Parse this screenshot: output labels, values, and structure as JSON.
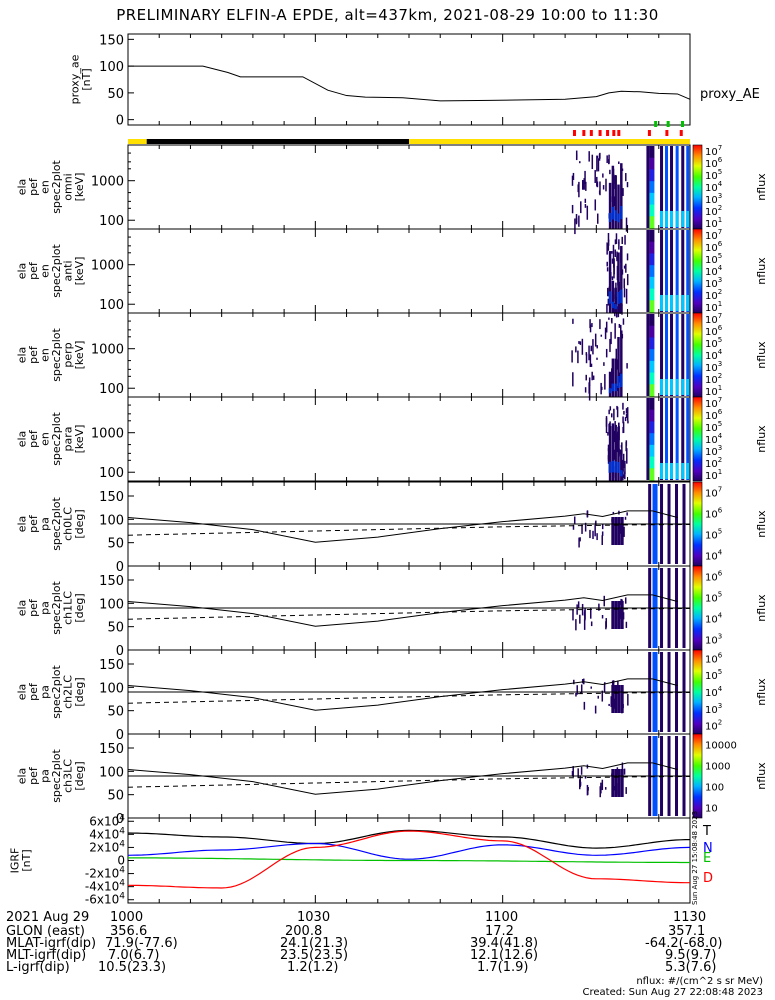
{
  "title": "PRELIMINARY ELFIN-A EPDE, alt=437km, 2021-08-29 10:00 to 11:30",
  "proxy_label": "proxy_AE",
  "proxy_ylabel": [
    "proxy_ae",
    "[nT]"
  ],
  "spec_ylabels": [
    [
      "ela",
      "pef",
      "en",
      "spec2plot",
      "omni",
      "[keV]"
    ],
    [
      "ela",
      "pef",
      "en",
      "spec2plot",
      "anti",
      "[keV]"
    ],
    [
      "ela",
      "pef",
      "en",
      "spec2plot",
      "perp",
      "[keV]"
    ],
    [
      "ela",
      "pef",
      "en",
      "spec2plot",
      "para",
      "[keV]"
    ]
  ],
  "pa_ylabels": [
    [
      "ela",
      "pef",
      "pa",
      "spec2plot",
      "ch0LC",
      "[deg]"
    ],
    [
      "ela",
      "pef",
      "pa",
      "spec2plot",
      "ch1LC",
      "[deg]"
    ],
    [
      "ela",
      "pef",
      "pa",
      "spec2plot",
      "ch2LC",
      "[deg]"
    ],
    [
      "ela",
      "pef",
      "pa",
      "spec2plot",
      "ch3LC",
      "[deg]"
    ]
  ],
  "igrf_ylabel": [
    "IGRF",
    "[nT]"
  ],
  "igrf_legend": [
    {
      "text": "T",
      "color": "#000000"
    },
    {
      "text": "N",
      "color": "#0000ff"
    },
    {
      "text": "E",
      "color": "#00c000"
    },
    {
      "text": "D",
      "color": "#ff0000"
    }
  ],
  "nflux": "nflux",
  "sidebar_text": "Sun Aug 27 15:08:48 2023",
  "footer": {
    "rows": [
      {
        "label": "2021 Aug 29",
        "values": [
          "1000",
          "1030",
          "1100",
          "1130"
        ]
      },
      {
        "label": "GLON (east)",
        "values": [
          "356.6",
          "200.8",
          "17.2",
          "357.1"
        ]
      },
      {
        "label": "MLAT-igrf(dip)",
        "values": [
          "71.9(-77.6)",
          "24.1(21.3)",
          "39.4(41.8)",
          "-64.2(-68.0)"
        ]
      },
      {
        "label": "MLT-igrf(dip)",
        "values": [
          "7.0(6.7)",
          "23.5(23.5)",
          "12.1(12.6)",
          "9.5(9.7)"
        ]
      },
      {
        "label": "L-igrf(dip)",
        "values": [
          "10.5(23.3)",
          "1.2(1.2)",
          "1.7(1.9)",
          "5.3(7.6)"
        ]
      }
    ],
    "units_note": "nflux: #/(cm^2 s sr MeV)",
    "created": "Created: Sun Aug 27 22:08:48 2023"
  },
  "colors": {
    "yellow_bar": "#ffe000",
    "black_bar": "#000000",
    "red_marker": "#ff0000",
    "green_marker": "#00c000"
  },
  "chart_data": [
    {
      "type": "line",
      "panel": "proxy_ae",
      "xlim": [
        0,
        90
      ],
      "ylim": [
        -10,
        160
      ],
      "yticks": [
        0,
        50,
        100,
        150
      ],
      "x": [
        0,
        12,
        16,
        18,
        28,
        32,
        35,
        38,
        44,
        50,
        58,
        70,
        75,
        77,
        79,
        82,
        85,
        88,
        90
      ],
      "y": [
        100,
        100,
        88,
        80,
        80,
        55,
        45,
        42,
        41,
        35,
        36,
        38,
        43,
        50,
        53,
        52,
        49,
        48,
        38
      ],
      "yaxis_note": "x in minutes after 10:00"
    },
    {
      "type": "heatmap",
      "panel": "energy spectrograms (omni, anti, perp, para)",
      "ylim": [
        60,
        8000
      ],
      "ylog": true,
      "yticks": [
        100,
        1000
      ],
      "active_windows_min": [
        [
          71,
          85
        ],
        [
          87,
          90
        ]
      ],
      "colorbar": {
        "label": "nflux",
        "ticks": [
          "10^1",
          "10^2",
          "10^3",
          "10^4",
          "10^5",
          "10^6",
          "10^7"
        ]
      }
    },
    {
      "type": "line",
      "panel": "pitch-angle loss cone (ch0LC..ch3LC)",
      "xlim": [
        0,
        90
      ],
      "ylim": [
        0,
        180
      ],
      "yticks": [
        0,
        50,
        100,
        150
      ],
      "series": [
        {
          "name": "",
          "style": "solid",
          "x": [
            0,
            10,
            20,
            30,
            40,
            50,
            60,
            70,
            73,
            76,
            80,
            84,
            88
          ],
          "y": [
            104,
            93,
            78,
            51,
            62,
            80,
            95,
            107,
            112,
            106,
            118,
            118,
            104
          ]
        },
        {
          "name": "",
          "style": "dashed",
          "x": [
            0,
            20,
            40,
            60,
            80,
            90
          ],
          "y": [
            66,
            72,
            78,
            84,
            88,
            89
          ]
        },
        {
          "name": "",
          "style": "solid",
          "x": [
            0,
            90
          ],
          "y": [
            90,
            90
          ]
        }
      ],
      "colorbars": [
        {
          "ticks": [
            "10^4",
            "10^5",
            "10^6",
            "10^7"
          ]
        },
        {
          "ticks": [
            "10^3",
            "10^4",
            "10^5",
            "10^6"
          ]
        },
        {
          "ticks": [
            "10^2",
            "10^3",
            "10^4",
            "10^5",
            "10^6"
          ]
        },
        {
          "ticks": [
            "10",
            "100",
            "1000",
            "10000"
          ]
        }
      ]
    },
    {
      "type": "line",
      "panel": "IGRF",
      "xlim": [
        0,
        90
      ],
      "ylim": [
        -65000,
        65000
      ],
      "yticks": [
        "6x10^4",
        "4x10^4",
        "2x10^4",
        "0",
        "-2x10^4",
        "-4x10^4",
        "-6x10^4"
      ],
      "series": [
        {
          "name": "T",
          "color": "#000000",
          "x": [
            0,
            15,
            30,
            45,
            60,
            75,
            90
          ],
          "y": [
            42000,
            36000,
            26000,
            46000,
            36000,
            19000,
            32000
          ]
        },
        {
          "name": "N",
          "color": "#0000ff",
          "x": [
            0,
            15,
            30,
            45,
            60,
            75,
            90
          ],
          "y": [
            8000,
            16000,
            26000,
            2000,
            24000,
            8000,
            20000
          ]
        },
        {
          "name": "E",
          "color": "#00c000",
          "x": [
            0,
            45,
            90
          ],
          "y": [
            4000,
            0,
            -3000
          ]
        },
        {
          "name": "D",
          "color": "#ff0000",
          "x": [
            0,
            15,
            30,
            45,
            60,
            75,
            90
          ],
          "y": [
            -38000,
            -42000,
            20000,
            45000,
            30000,
            -28000,
            -34000
          ]
        }
      ]
    }
  ]
}
